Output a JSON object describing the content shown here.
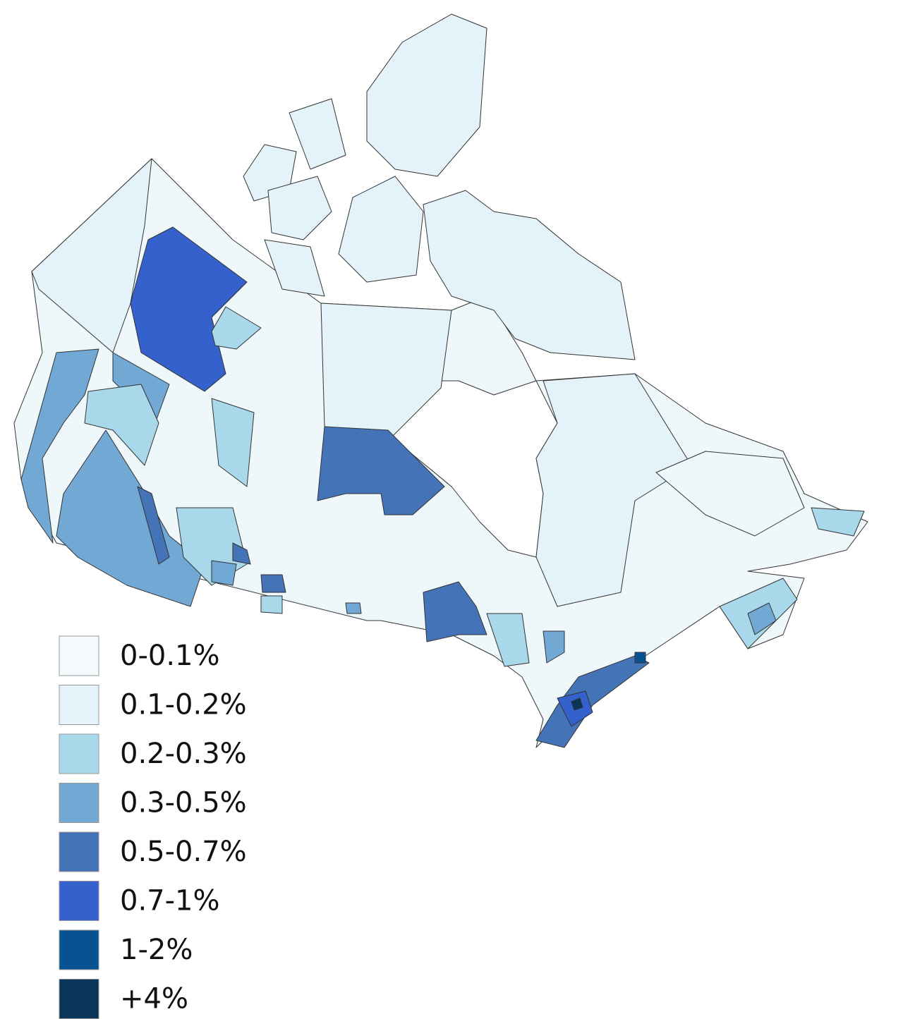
{
  "legend": {
    "items": [
      {
        "label": "0-0.1%",
        "color": "#f5fbfd"
      },
      {
        "label": "0.1-0.2%",
        "color": "#e3f3f9"
      },
      {
        "label": "0.2-0.3%",
        "color": "#a9d8ea"
      },
      {
        "label": "0.3-0.5%",
        "color": "#72a8d4"
      },
      {
        "label": "0.5-0.7%",
        "color": "#4573b8"
      },
      {
        "label": "0.7-1%",
        "color": "#3561cc"
      },
      {
        "label": "1-2%",
        "color": "#075291"
      },
      {
        "label": "+4%",
        "color": "#0b3558"
      }
    ]
  }
}
